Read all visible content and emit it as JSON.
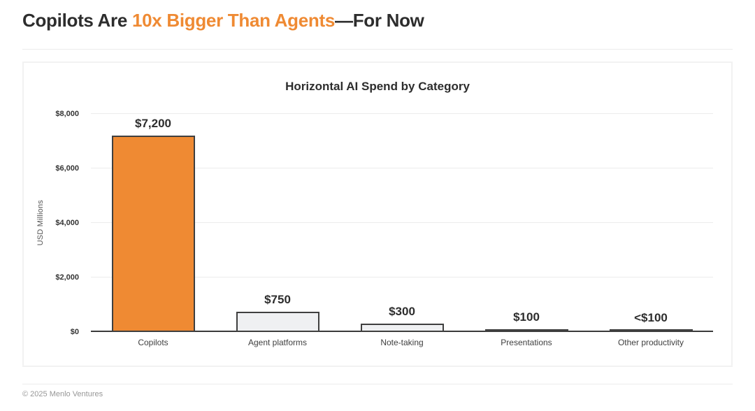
{
  "page": {
    "title_prefix": "Copilots Are ",
    "title_highlight": "10x Bigger Than Agents",
    "title_suffix": "—For Now",
    "accent_color": "#ef8a33",
    "footer": "© 2025 Menlo Ventures"
  },
  "chart_data": {
    "type": "bar",
    "title": "Horizontal AI Spend by Category",
    "xlabel": "",
    "ylabel": "USD Millions",
    "ylim": [
      0,
      8000
    ],
    "yticks": [
      0,
      2000,
      4000,
      6000,
      8000
    ],
    "ytick_labels": [
      "$0",
      "$2,000",
      "$4,000",
      "$6,000",
      "$8,000"
    ],
    "grid": "horizontal",
    "legend": "none",
    "categories": [
      "Copilots",
      "Agent platforms",
      "Note-taking",
      "Presentations",
      "Other productivity"
    ],
    "values": [
      7200,
      750,
      300,
      100,
      50
    ],
    "value_labels": [
      "$7,200",
      "$750",
      "$300",
      "$100",
      "<$100"
    ],
    "bar_colors": [
      "#ef8a33",
      "#eff0f2",
      "#eff0f2",
      "#eff0f2",
      "#eff0f2"
    ],
    "bar_border_color": "#3f3f3f",
    "gridline_color": "#ececec",
    "axis_line_color": "#3a3a3a"
  }
}
